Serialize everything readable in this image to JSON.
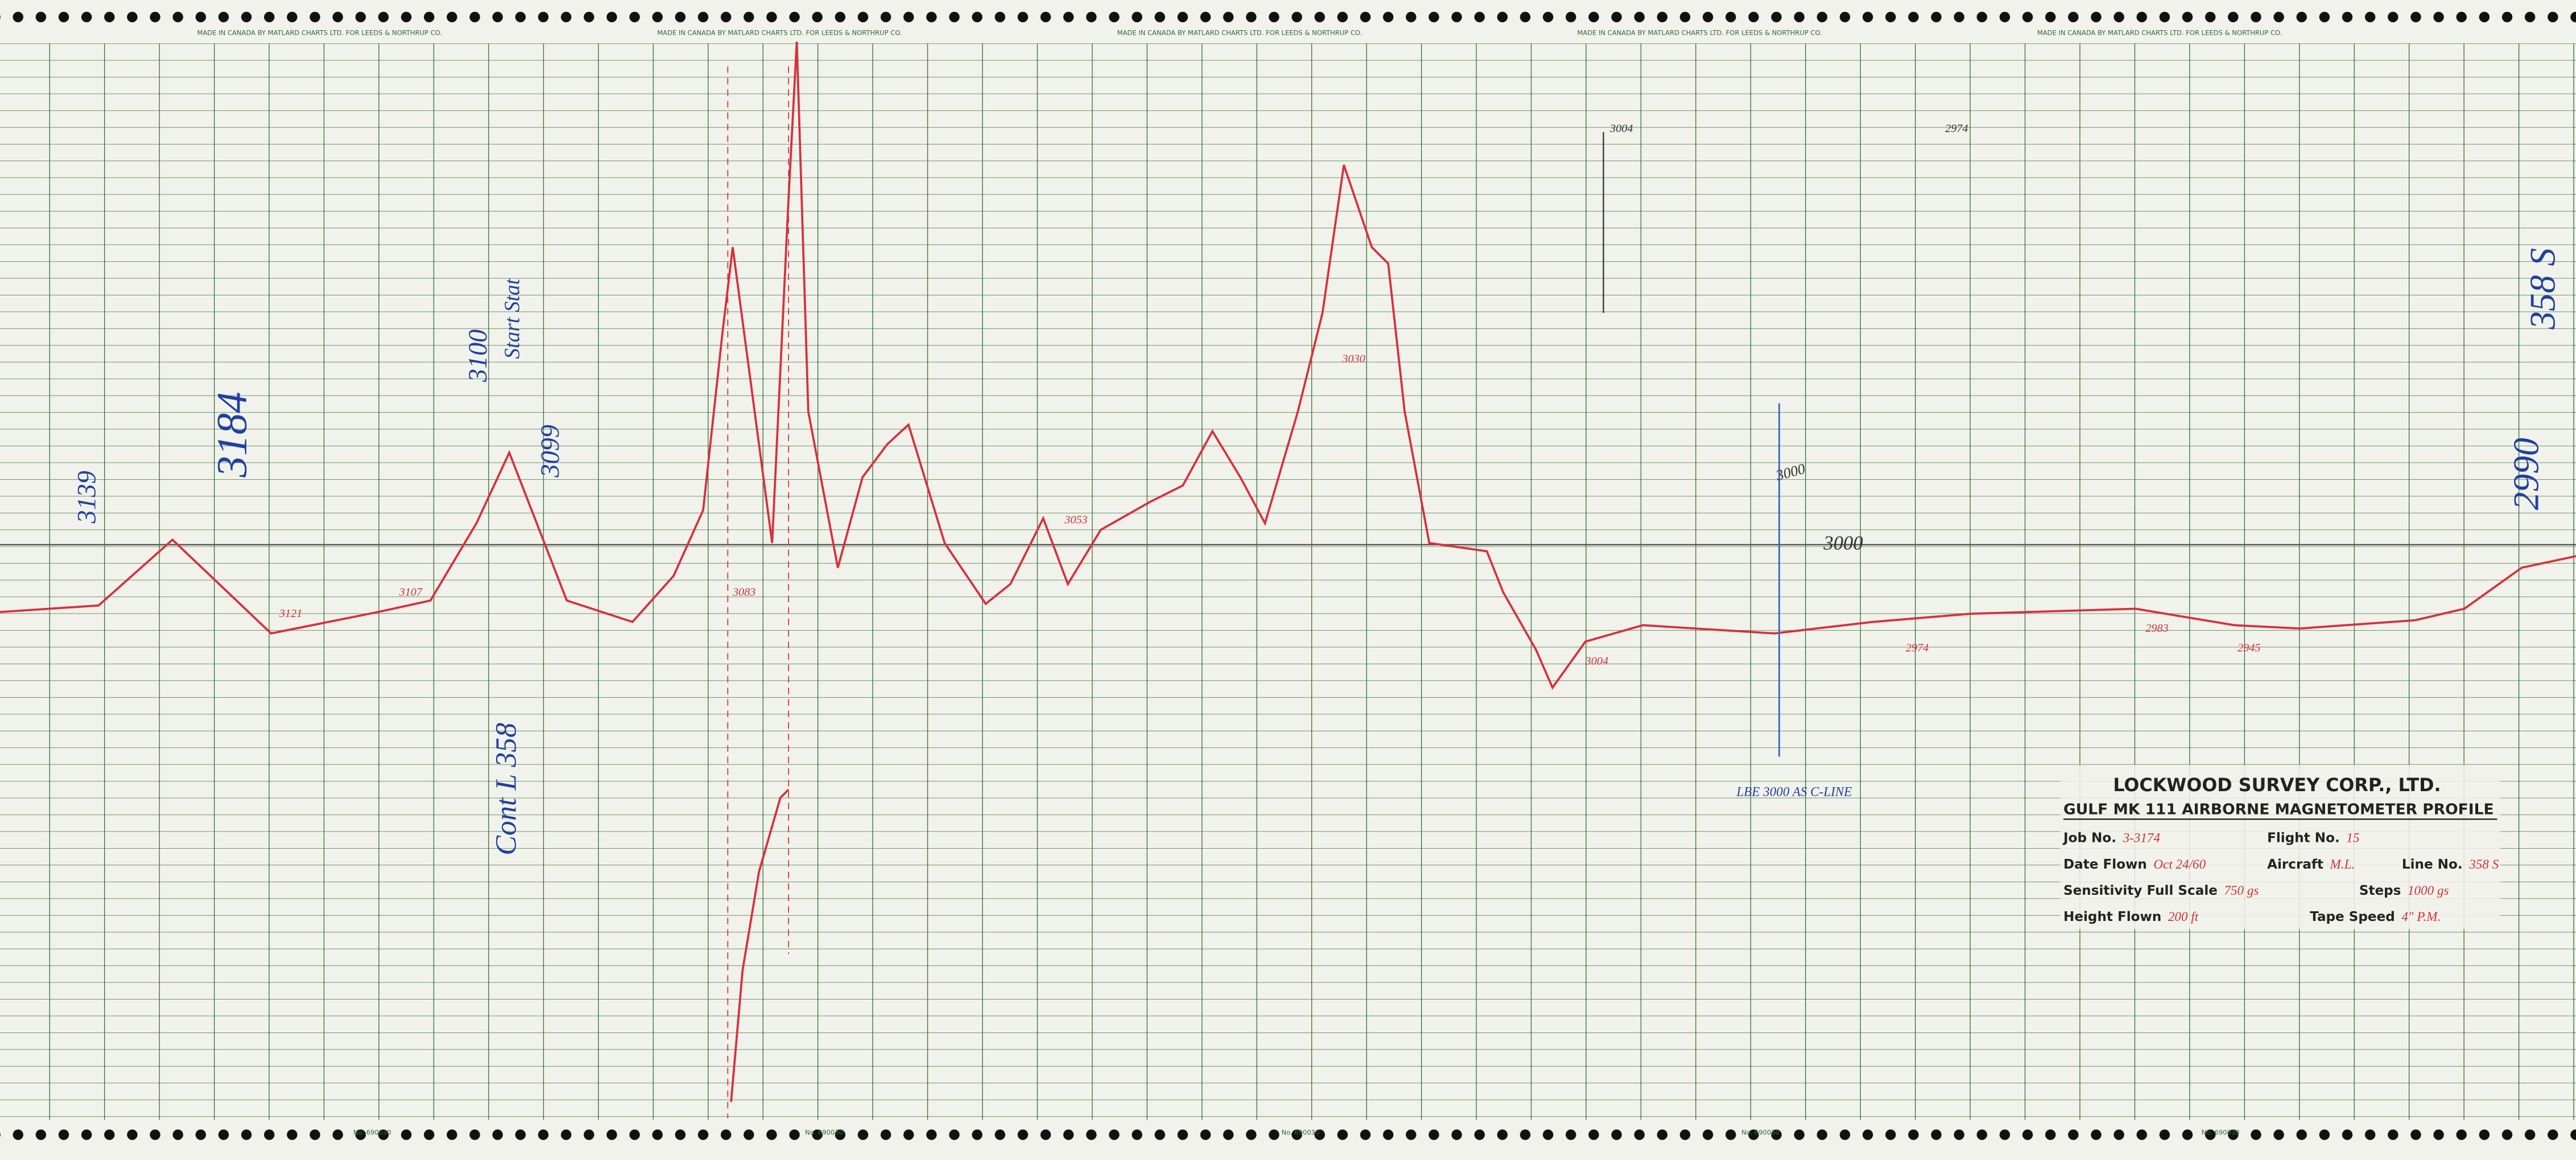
{
  "edge_print": {
    "maker": "MADE IN CANADA BY MATLARD CHARTS LTD. FOR LEEDS & NORTHRUP CO.",
    "chart_no": "No. 690030"
  },
  "title_block": {
    "company": "LOCKWOOD SURVEY CORP., LTD.",
    "title": "GULF MK 111 AIRBORNE MAGNETOMETER PROFILE",
    "fields": [
      {
        "label": "Job No.",
        "value": "3-3174"
      },
      {
        "label": "Flight No.",
        "value": "15"
      },
      {
        "label": "Date Flown",
        "value": "Oct 24/60"
      },
      {
        "label": "Aircraft",
        "value": "M.L."
      },
      {
        "label": "Line No.",
        "value": "358 S"
      },
      {
        "label": "Sensitivity Full Scale",
        "value": "750 gs"
      },
      {
        "label": "Steps",
        "value": "1000 gs"
      },
      {
        "label": "Height Flown",
        "value": "200 ft"
      },
      {
        "label": "Tape Speed",
        "value": "4\" P.M."
      }
    ]
  },
  "annotations": [
    "3121",
    "3107",
    "3083",
    "3053",
    "3030",
    "3004",
    "2974",
    "2983",
    "2945",
    "3004",
    "2974",
    "3000",
    "3000",
    "3100",
    "Start Stat",
    "3099",
    "Cont L 358",
    "358 S",
    "2990",
    "LBE 3000 AS C-LINE",
    "3139",
    "3184"
  ]
}
